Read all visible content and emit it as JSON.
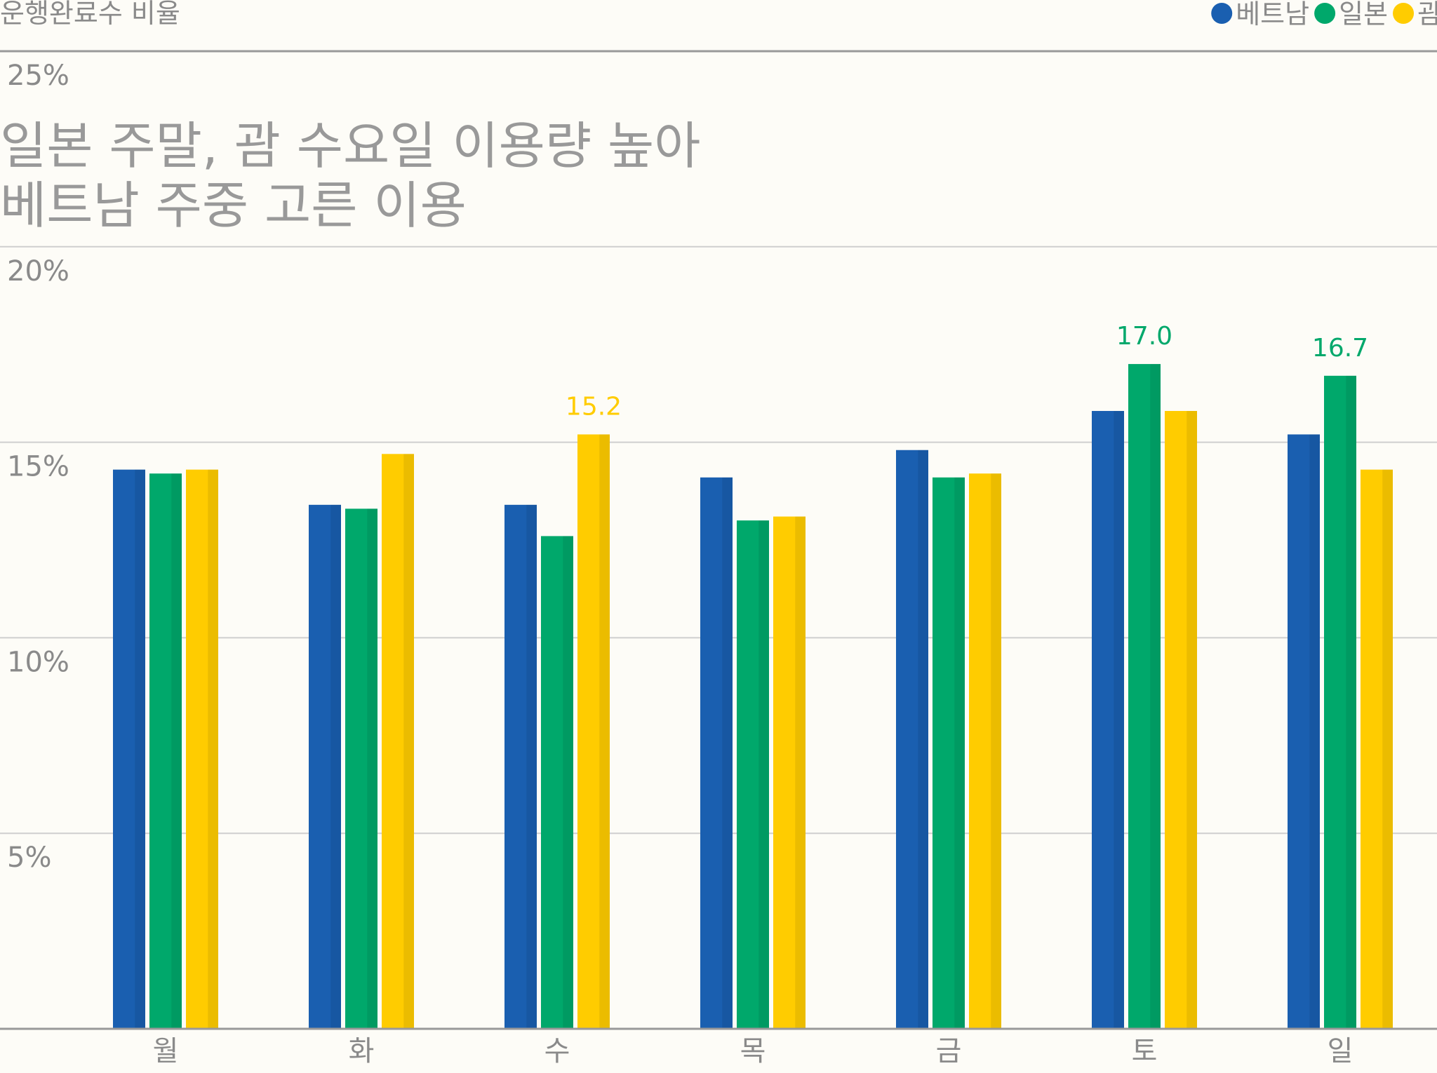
{
  "chart_data": {
    "type": "bar",
    "subtitle": "운행완료수 비율",
    "title_lines": [
      "일본 주말, 괌 수요일 이용량 높아",
      "베트남 주중 고른 이용"
    ],
    "categories": [
      "월",
      "화",
      "수",
      "목",
      "금",
      "토",
      "일"
    ],
    "series": [
      {
        "name": "베트남",
        "color": "#1a5fb0",
        "values": [
          14.3,
          13.4,
          13.4,
          14.1,
          14.8,
          15.8,
          15.2
        ]
      },
      {
        "name": "일본",
        "color": "#00a86b",
        "values": [
          14.2,
          13.3,
          12.6,
          13.0,
          14.1,
          17.0,
          16.7
        ]
      },
      {
        "name": "괌",
        "color": "#ffcc00",
        "values": [
          14.3,
          14.7,
          15.2,
          13.1,
          14.2,
          15.8,
          14.3
        ]
      }
    ],
    "y_ticks": [
      "5%",
      "10%",
      "15%",
      "20%",
      "25%"
    ],
    "y_tick_values": [
      5,
      10,
      15,
      20,
      25
    ],
    "ylim": [
      0,
      25
    ],
    "grid": true,
    "legend_position": "top-right",
    "value_labels": [
      {
        "category": "수",
        "series": "괌",
        "text": "15.2"
      },
      {
        "category": "토",
        "series": "일본",
        "text": "17.0"
      },
      {
        "category": "일",
        "series": "일본",
        "text": "16.7"
      }
    ]
  }
}
